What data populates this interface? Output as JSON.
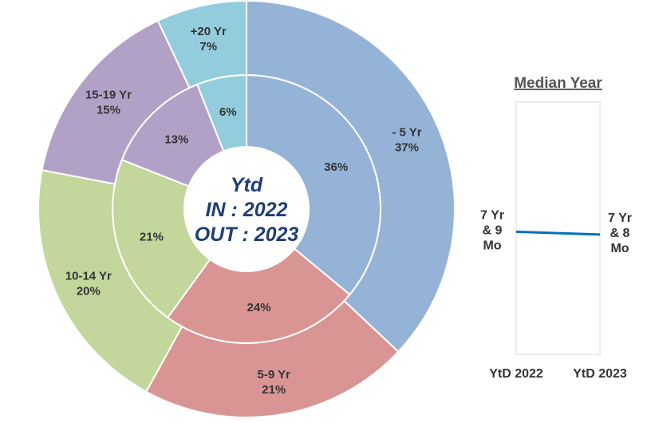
{
  "chart_data": [
    {
      "type": "pie",
      "variant": "nested-donut",
      "center_label": [
        "Ytd",
        "IN : 2022",
        "OUT : 2023"
      ],
      "rings": [
        {
          "name": "IN : 2022",
          "position": "inner",
          "slices": [
            {
              "category": "- 5 Yr",
              "value": 36,
              "label": "36%",
              "color": "#95b3d7"
            },
            {
              "category": "5-9 Yr",
              "value": 24,
              "label": "24%",
              "color": "#d99594"
            },
            {
              "category": "10-14 Yr",
              "value": 21,
              "label": "21%",
              "color": "#c3d69b"
            },
            {
              "category": "15-19 Yr",
              "value": 13,
              "label": "13%",
              "color": "#b2a1c7"
            },
            {
              "category": "+20 Yr",
              "value": 6,
              "label": "6%",
              "color": "#93cddd"
            }
          ]
        },
        {
          "name": "OUT : 2023",
          "position": "outer",
          "slices": [
            {
              "category": "- 5 Yr",
              "value": 37,
              "label": "37%",
              "color": "#95b3d7"
            },
            {
              "category": "5-9 Yr",
              "value": 21,
              "label": "21%",
              "color": "#d99594"
            },
            {
              "category": "10-14 Yr",
              "value": 20,
              "label": "20%",
              "color": "#c3d69b"
            },
            {
              "category": "15-19 Yr",
              "value": 15,
              "label": "15%",
              "color": "#b2a1c7"
            },
            {
              "category": "+20 Yr",
              "value": 7,
              "label": "7%",
              "color": "#93cddd"
            }
          ]
        }
      ]
    },
    {
      "type": "line",
      "title": "Median Year",
      "categories": [
        "YtD 2022",
        "YtD 2023"
      ],
      "series": [
        {
          "values": [
            7.75,
            7.667
          ],
          "value_labels": [
            [
              "7 Yr",
              "& 9",
              "Mo"
            ],
            [
              "7 Yr",
              "& 8",
              "Mo"
            ]
          ],
          "color": "#0070c0"
        }
      ],
      "ylim": [
        4.2,
        11.5
      ],
      "grid": false,
      "legend": "none"
    }
  ]
}
